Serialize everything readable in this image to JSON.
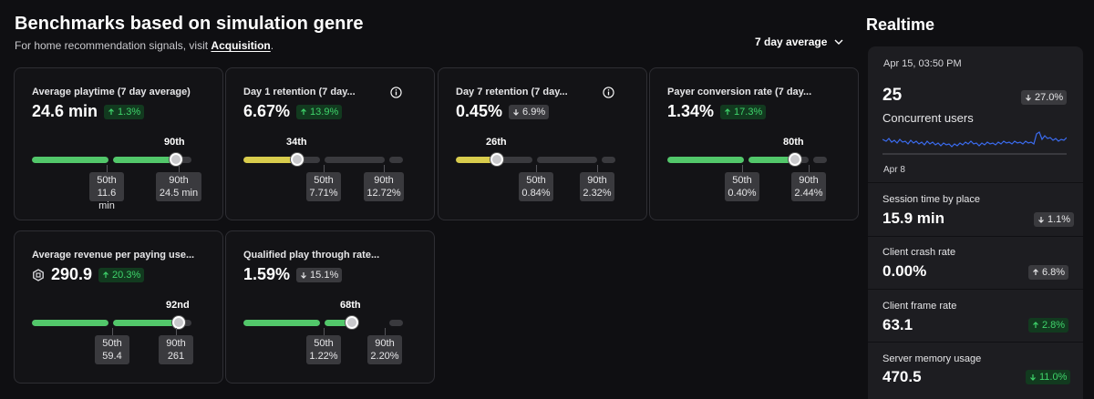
{
  "header": {
    "title": "Benchmarks based on simulation genre",
    "subtitle_prefix": "For home recommendation signals, visit ",
    "subtitle_link": "Acquisition",
    "subtitle_suffix": ".",
    "period_selector": "7 day average"
  },
  "cards": [
    {
      "title": "Average playtime (7 day average)",
      "value": "24.6 min",
      "delta": "1.3%",
      "delta_dir": "up",
      "percentile_label": "90th",
      "percentile_fraction": 0.9,
      "marker50": {
        "label": "50th",
        "value": "11.6 min"
      },
      "marker90": {
        "label": "90th",
        "value": "24.5 min"
      }
    },
    {
      "title": "Day 1 retention (7 day...",
      "value": "6.67%",
      "delta": "13.9%",
      "delta_dir": "up",
      "percentile_label": "34th",
      "percentile_fraction": 0.34,
      "marker50": {
        "label": "50th",
        "value": "7.71%"
      },
      "marker90": {
        "label": "90th",
        "value": "12.72%"
      }
    },
    {
      "title": "Day 7 retention (7 day...",
      "value": "0.45%",
      "delta": "6.9%",
      "delta_dir": "down",
      "percentile_label": "26th",
      "percentile_fraction": 0.26,
      "marker50": {
        "label": "50th",
        "value": "0.84%"
      },
      "marker90": {
        "label": "90th",
        "value": "2.32%"
      }
    },
    {
      "title": "Payer conversion rate (7 day...",
      "value": "1.34%",
      "delta": "17.3%",
      "delta_dir": "up",
      "percentile_label": "80th",
      "percentile_fraction": 0.8,
      "marker50": {
        "label": "50th",
        "value": "0.40%"
      },
      "marker90": {
        "label": "90th",
        "value": "2.44%"
      }
    },
    {
      "title": "Average revenue per paying use...",
      "value": "290.9",
      "delta": "20.3%",
      "delta_dir": "up",
      "percentile_label": "92nd",
      "percentile_fraction": 0.92,
      "marker50": {
        "label": "50th",
        "value": "59.4"
      },
      "marker90": {
        "label": "90th",
        "value": "261"
      }
    },
    {
      "title": "Qualified play through rate...",
      "value": "1.59%",
      "delta": "15.1%",
      "delta_dir": "down",
      "percentile_label": "68th",
      "percentile_fraction": 0.68,
      "marker50": {
        "label": "50th",
        "value": "1.22%"
      },
      "marker90": {
        "label": "90th",
        "value": "2.20%"
      }
    }
  ],
  "colors": {
    "bar_green": "#52c76a",
    "bar_yellow": "#d8cc4c",
    "bar_track": "#3a3a3e",
    "badge_green_text": "#3fd36b",
    "spark_line": "#3b6cf0"
  },
  "realtime": {
    "title": "Realtime",
    "timestamp": "Apr 15, 03:50 PM",
    "concurrent_value": "25",
    "concurrent_label": "Concurrent users",
    "concurrent_delta": "27.0%",
    "axis_label": "Apr 8",
    "metrics": [
      {
        "name": "Session time by place",
        "value": "15.9 min",
        "delta": "1.1%",
        "dir": "down",
        "tone": "gray"
      },
      {
        "name": "Client crash rate",
        "value": "0.00%",
        "delta": "6.8%",
        "dir": "up",
        "tone": "gray"
      },
      {
        "name": "Client frame rate",
        "value": "63.1",
        "delta": "2.8%",
        "dir": "up",
        "tone": "green"
      },
      {
        "name": "Server memory usage",
        "value": "470.5",
        "delta": "11.0%",
        "dir": "down",
        "tone": "green"
      }
    ]
  }
}
